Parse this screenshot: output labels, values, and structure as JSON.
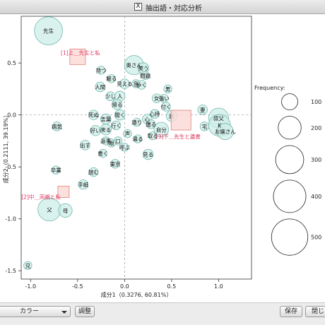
{
  "window": {
    "title": "抽出語・対応分析"
  },
  "toolbar": {
    "color_label": "カラー",
    "adjust_label": "調整",
    "save_label": "保存",
    "close_label": "閉じ"
  },
  "colors": {
    "bubble_fill": "#cdeee8",
    "bubble_stroke": "#72b8ad",
    "variable_fill": "#fadad7",
    "variable_stroke": "#e0807a",
    "variable_text": "#e0335c"
  },
  "chart_data": {
    "type": "scatter",
    "title": "",
    "xlabel": "成分1（0.3276, 60.81%）",
    "ylabel": "成分2（0.2111, 39.19%）",
    "xlim": [
      -1.1,
      1.35
    ],
    "ylim": [
      -1.58,
      0.95
    ],
    "xticks": [
      -1.0,
      -0.5,
      0.0,
      0.5,
      1.0
    ],
    "xtick_labels": [
      "-1.0",
      "-0.5",
      "0.0",
      "0.5",
      "1.0"
    ],
    "yticks": [
      -1.5,
      -1.0,
      -0.5,
      0.0,
      0.5
    ],
    "ytick_labels": [
      "-1.5",
      "-1.0",
      "-0.5",
      "0.0",
      "0.5"
    ],
    "grid": false,
    "reference_lines": [
      0,
      0
    ],
    "legend": {
      "title": "Frequency:",
      "placement": "right",
      "sizes": [
        100,
        200,
        300,
        400,
        500
      ],
      "labels": [
        "100",
        "200",
        "300",
        "400",
        "500"
      ]
    },
    "words": [
      {
        "label": "先生",
        "x": -0.81,
        "y": 0.81,
        "freq": 300
      },
      {
        "label": "奥さん",
        "x": 0.1,
        "y": 0.48,
        "freq": 140
      },
      {
        "label": "笑う",
        "x": 0.2,
        "y": 0.45,
        "freq": 45
      },
      {
        "label": "持つ",
        "x": -0.25,
        "y": 0.43,
        "freq": 25
      },
      {
        "label": "問題",
        "x": 0.22,
        "y": 0.38,
        "freq": 25
      },
      {
        "label": "解る",
        "x": -0.14,
        "y": 0.35,
        "freq": 25
      },
      {
        "label": "見える",
        "x": 0.0,
        "y": 0.3,
        "freq": 35
      },
      {
        "label": "急",
        "x": 0.12,
        "y": 0.3,
        "freq": 25
      },
      {
        "label": "歩く",
        "x": 0.18,
        "y": 0.29,
        "freq": 30
      },
      {
        "label": "人間",
        "x": -0.26,
        "y": 0.27,
        "freq": 35
      },
      {
        "label": "男",
        "x": 0.46,
        "y": 0.25,
        "freq": 25
      },
      {
        "label": "少し",
        "x": -0.15,
        "y": 0.18,
        "freq": 30
      },
      {
        "label": "人",
        "x": -0.05,
        "y": 0.18,
        "freq": 40
      },
      {
        "label": "強い",
        "x": 0.42,
        "y": 0.16,
        "freq": 25
      },
      {
        "label": "女",
        "x": 0.34,
        "y": 0.16,
        "freq": 30
      },
      {
        "label": "帰る",
        "x": -0.08,
        "y": 0.1,
        "freq": 40
      },
      {
        "label": "付く",
        "x": 0.44,
        "y": 0.08,
        "freq": 30
      },
      {
        "label": "妻",
        "x": 0.83,
        "y": 0.05,
        "freq": 35
      },
      {
        "label": "死ぬ",
        "x": -0.33,
        "y": 0.0,
        "freq": 35
      },
      {
        "label": "聞く",
        "x": -0.05,
        "y": 0.0,
        "freq": 40
      },
      {
        "label": "心持",
        "x": 0.32,
        "y": 0.01,
        "freq": 30
      },
      {
        "label": "話",
        "x": 0.5,
        "y": -0.01,
        "freq": 45
      },
      {
        "label": "叔父",
        "x": 1.0,
        "y": -0.03,
        "freq": 150
      },
      {
        "label": "K",
        "x": 1.01,
        "y": -0.1,
        "freq": 180
      },
      {
        "label": "お嬢さん",
        "x": 1.07,
        "y": -0.16,
        "freq": 100
      },
      {
        "label": "宅",
        "x": 0.85,
        "y": -0.11,
        "freq": 30
      },
      {
        "label": "病気",
        "x": -0.72,
        "y": -0.11,
        "freq": 30
      },
      {
        "label": "言葉",
        "x": -0.2,
        "y": -0.04,
        "freq": 40
      },
      {
        "label": "心",
        "x": 0.24,
        "y": -0.04,
        "freq": 35
      },
      {
        "label": "通り",
        "x": 0.13,
        "y": -0.07,
        "freq": 25
      },
      {
        "label": "行く",
        "x": -0.09,
        "y": -0.1,
        "freq": 30
      },
      {
        "label": "遭る",
        "x": 0.28,
        "y": -0.09,
        "freq": 30
      },
      {
        "label": "好い",
        "x": -0.31,
        "y": -0.15,
        "freq": 40
      },
      {
        "label": "来る",
        "x": -0.2,
        "y": -0.14,
        "freq": 45
      },
      {
        "label": "自分",
        "x": 0.39,
        "y": -0.14,
        "freq": 80
      },
      {
        "label": "取る",
        "x": 0.3,
        "y": -0.2,
        "freq": 25
      },
      {
        "label": "声",
        "x": 0.03,
        "y": -0.18,
        "freq": 25
      },
      {
        "label": "遣る",
        "x": 0.14,
        "y": -0.23,
        "freq": 25
      },
      {
        "label": "返事",
        "x": -0.2,
        "y": -0.25,
        "freq": 25
      },
      {
        "label": "口",
        "x": -0.07,
        "y": -0.25,
        "freq": 25
      },
      {
        "label": "出す",
        "x": -0.42,
        "y": -0.29,
        "freq": 35
      },
      {
        "label": "眼",
        "x": -0.14,
        "y": -0.27,
        "freq": 25
      },
      {
        "label": "呼ぶ",
        "x": 0.0,
        "y": -0.31,
        "freq": 25
      },
      {
        "label": "書く",
        "x": -0.23,
        "y": -0.37,
        "freq": 25
      },
      {
        "label": "見る",
        "x": 0.25,
        "y": -0.38,
        "freq": 40
      },
      {
        "label": "東京",
        "x": -0.1,
        "y": -0.47,
        "freq": 30
      },
      {
        "label": "卒業",
        "x": -0.73,
        "y": -0.53,
        "freq": 25
      },
      {
        "label": "読む",
        "x": -0.33,
        "y": -0.55,
        "freq": 30
      },
      {
        "label": "手紙",
        "x": -0.44,
        "y": -0.67,
        "freq": 35
      },
      {
        "label": "父",
        "x": -0.8,
        "y": -0.91,
        "freq": 200
      },
      {
        "label": "母",
        "x": -0.63,
        "y": -0.92,
        "freq": 70
      },
      {
        "label": "兄",
        "x": -1.03,
        "y": -1.45,
        "freq": 25
      }
    ],
    "variables": [
      {
        "label": "[1]上＿先生と私",
        "x": -0.5,
        "y": 0.56
      },
      {
        "label": "[2]中＿両親と私",
        "x": -0.65,
        "y": -0.74
      },
      {
        "label": "[3]下＿先生と遺書",
        "x": 0.6,
        "y": -0.05
      }
    ]
  }
}
